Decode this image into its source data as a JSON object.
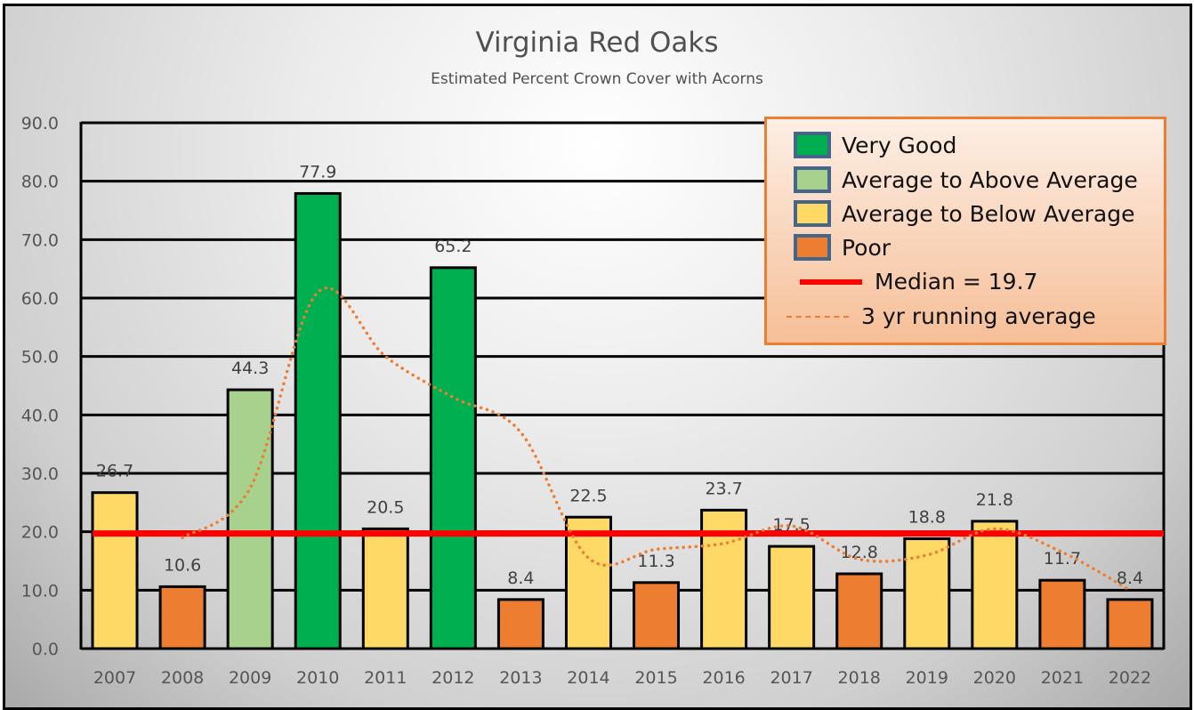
{
  "chart_data": {
    "type": "bar",
    "title": "Virginia Red Oaks",
    "subtitle": "Estimated Percent Crown Cover with Acorns",
    "xlabel": "",
    "ylabel": "",
    "ylim": [
      0,
      90
    ],
    "yticks": [
      "0.0",
      "10.0",
      "20.0",
      "30.0",
      "40.0",
      "50.0",
      "60.0",
      "70.0",
      "80.0",
      "90.0"
    ],
    "grid": true,
    "legend_position": "top-right",
    "categories": [
      "2007",
      "2008",
      "2009",
      "2010",
      "2011",
      "2012",
      "2013",
      "2014",
      "2015",
      "2016",
      "2017",
      "2018",
      "2019",
      "2020",
      "2021",
      "2022"
    ],
    "values": [
      26.7,
      10.6,
      44.3,
      77.9,
      20.5,
      65.2,
      8.4,
      22.5,
      11.3,
      23.7,
      17.5,
      12.8,
      18.8,
      21.8,
      11.7,
      8.4
    ],
    "value_labels": [
      "26.7",
      "10.6",
      "44.3",
      "77.9",
      "20.5",
      "65.2",
      "8.4",
      "22.5",
      "11.3",
      "23.7",
      "17.5",
      "12.8",
      "18.8",
      "21.8",
      "11.7",
      "8.4"
    ],
    "ratings": [
      "below",
      "poor",
      "above",
      "verygood",
      "below",
      "verygood",
      "poor",
      "below",
      "poor",
      "below",
      "below",
      "poor",
      "below",
      "below",
      "poor",
      "poor"
    ],
    "rating_colors": {
      "verygood": "#00b050",
      "above": "#a9d18e",
      "below": "#ffd966",
      "poor": "#ed7d31"
    },
    "legend": [
      {
        "key": "verygood",
        "label": "Very Good"
      },
      {
        "key": "above",
        "label": "Average to Above Average"
      },
      {
        "key": "below",
        "label": "Average to Below Average"
      },
      {
        "key": "poor",
        "label": "Poor"
      }
    ],
    "median": {
      "label": "Median = 19.7",
      "value": 19.7,
      "color": "#ff0000"
    },
    "running_average": {
      "label": "3 yr running average",
      "color": "#ed7d31",
      "x": [
        "2008",
        "2009",
        "2010",
        "2011",
        "2012",
        "2013",
        "2014",
        "2015",
        "2016",
        "2017",
        "2018",
        "2019",
        "2020",
        "2021",
        "2022"
      ],
      "values": [
        19.0,
        27.5,
        61.0,
        50.0,
        43.0,
        37.0,
        15.5,
        17.0,
        18.0,
        21.0,
        15.3,
        16.0,
        20.5,
        16.5,
        10.0
      ]
    }
  }
}
